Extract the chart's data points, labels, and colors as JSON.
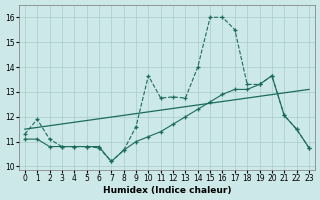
{
  "xlabel": "Humidex (Indice chaleur)",
  "xlim": [
    -0.5,
    23.5
  ],
  "ylim": [
    9.85,
    16.5
  ],
  "yticks": [
    10,
    11,
    12,
    13,
    14,
    15,
    16
  ],
  "xticks": [
    0,
    1,
    2,
    3,
    4,
    5,
    6,
    7,
    8,
    9,
    10,
    11,
    12,
    13,
    14,
    15,
    16,
    17,
    18,
    19,
    20,
    21,
    22,
    23
  ],
  "bg_color": "#cce8e8",
  "grid_color": "#aacccc",
  "line_color": "#1a6b5a",
  "curve1_x": [
    0,
    1,
    2,
    3,
    4,
    5,
    6,
    7,
    8,
    9,
    10,
    11,
    12,
    13,
    14,
    15,
    16,
    17,
    18,
    19,
    20,
    21,
    22,
    23
  ],
  "curve1_y": [
    11.3,
    11.9,
    11.1,
    10.8,
    10.8,
    10.8,
    10.75,
    10.2,
    10.65,
    11.6,
    13.65,
    12.75,
    12.8,
    12.75,
    14.0,
    16.0,
    16.0,
    15.5,
    13.3,
    13.3,
    13.65,
    12.05,
    11.5,
    10.75
  ],
  "curve2_x": [
    0,
    1,
    2,
    3,
    4,
    5,
    6,
    7,
    8,
    9,
    10,
    11,
    12,
    13,
    14,
    15,
    16,
    17,
    18,
    19,
    20,
    21,
    22,
    23
  ],
  "curve2_y": [
    11.1,
    11.1,
    10.8,
    10.8,
    10.8,
    10.8,
    10.8,
    10.2,
    10.65,
    11.0,
    11.2,
    11.4,
    11.7,
    12.0,
    12.3,
    12.6,
    12.9,
    13.1,
    13.1,
    13.3,
    13.65,
    12.05,
    11.5,
    10.75
  ],
  "trend_x": [
    0,
    23
  ],
  "trend_y": [
    11.5,
    13.1
  ]
}
